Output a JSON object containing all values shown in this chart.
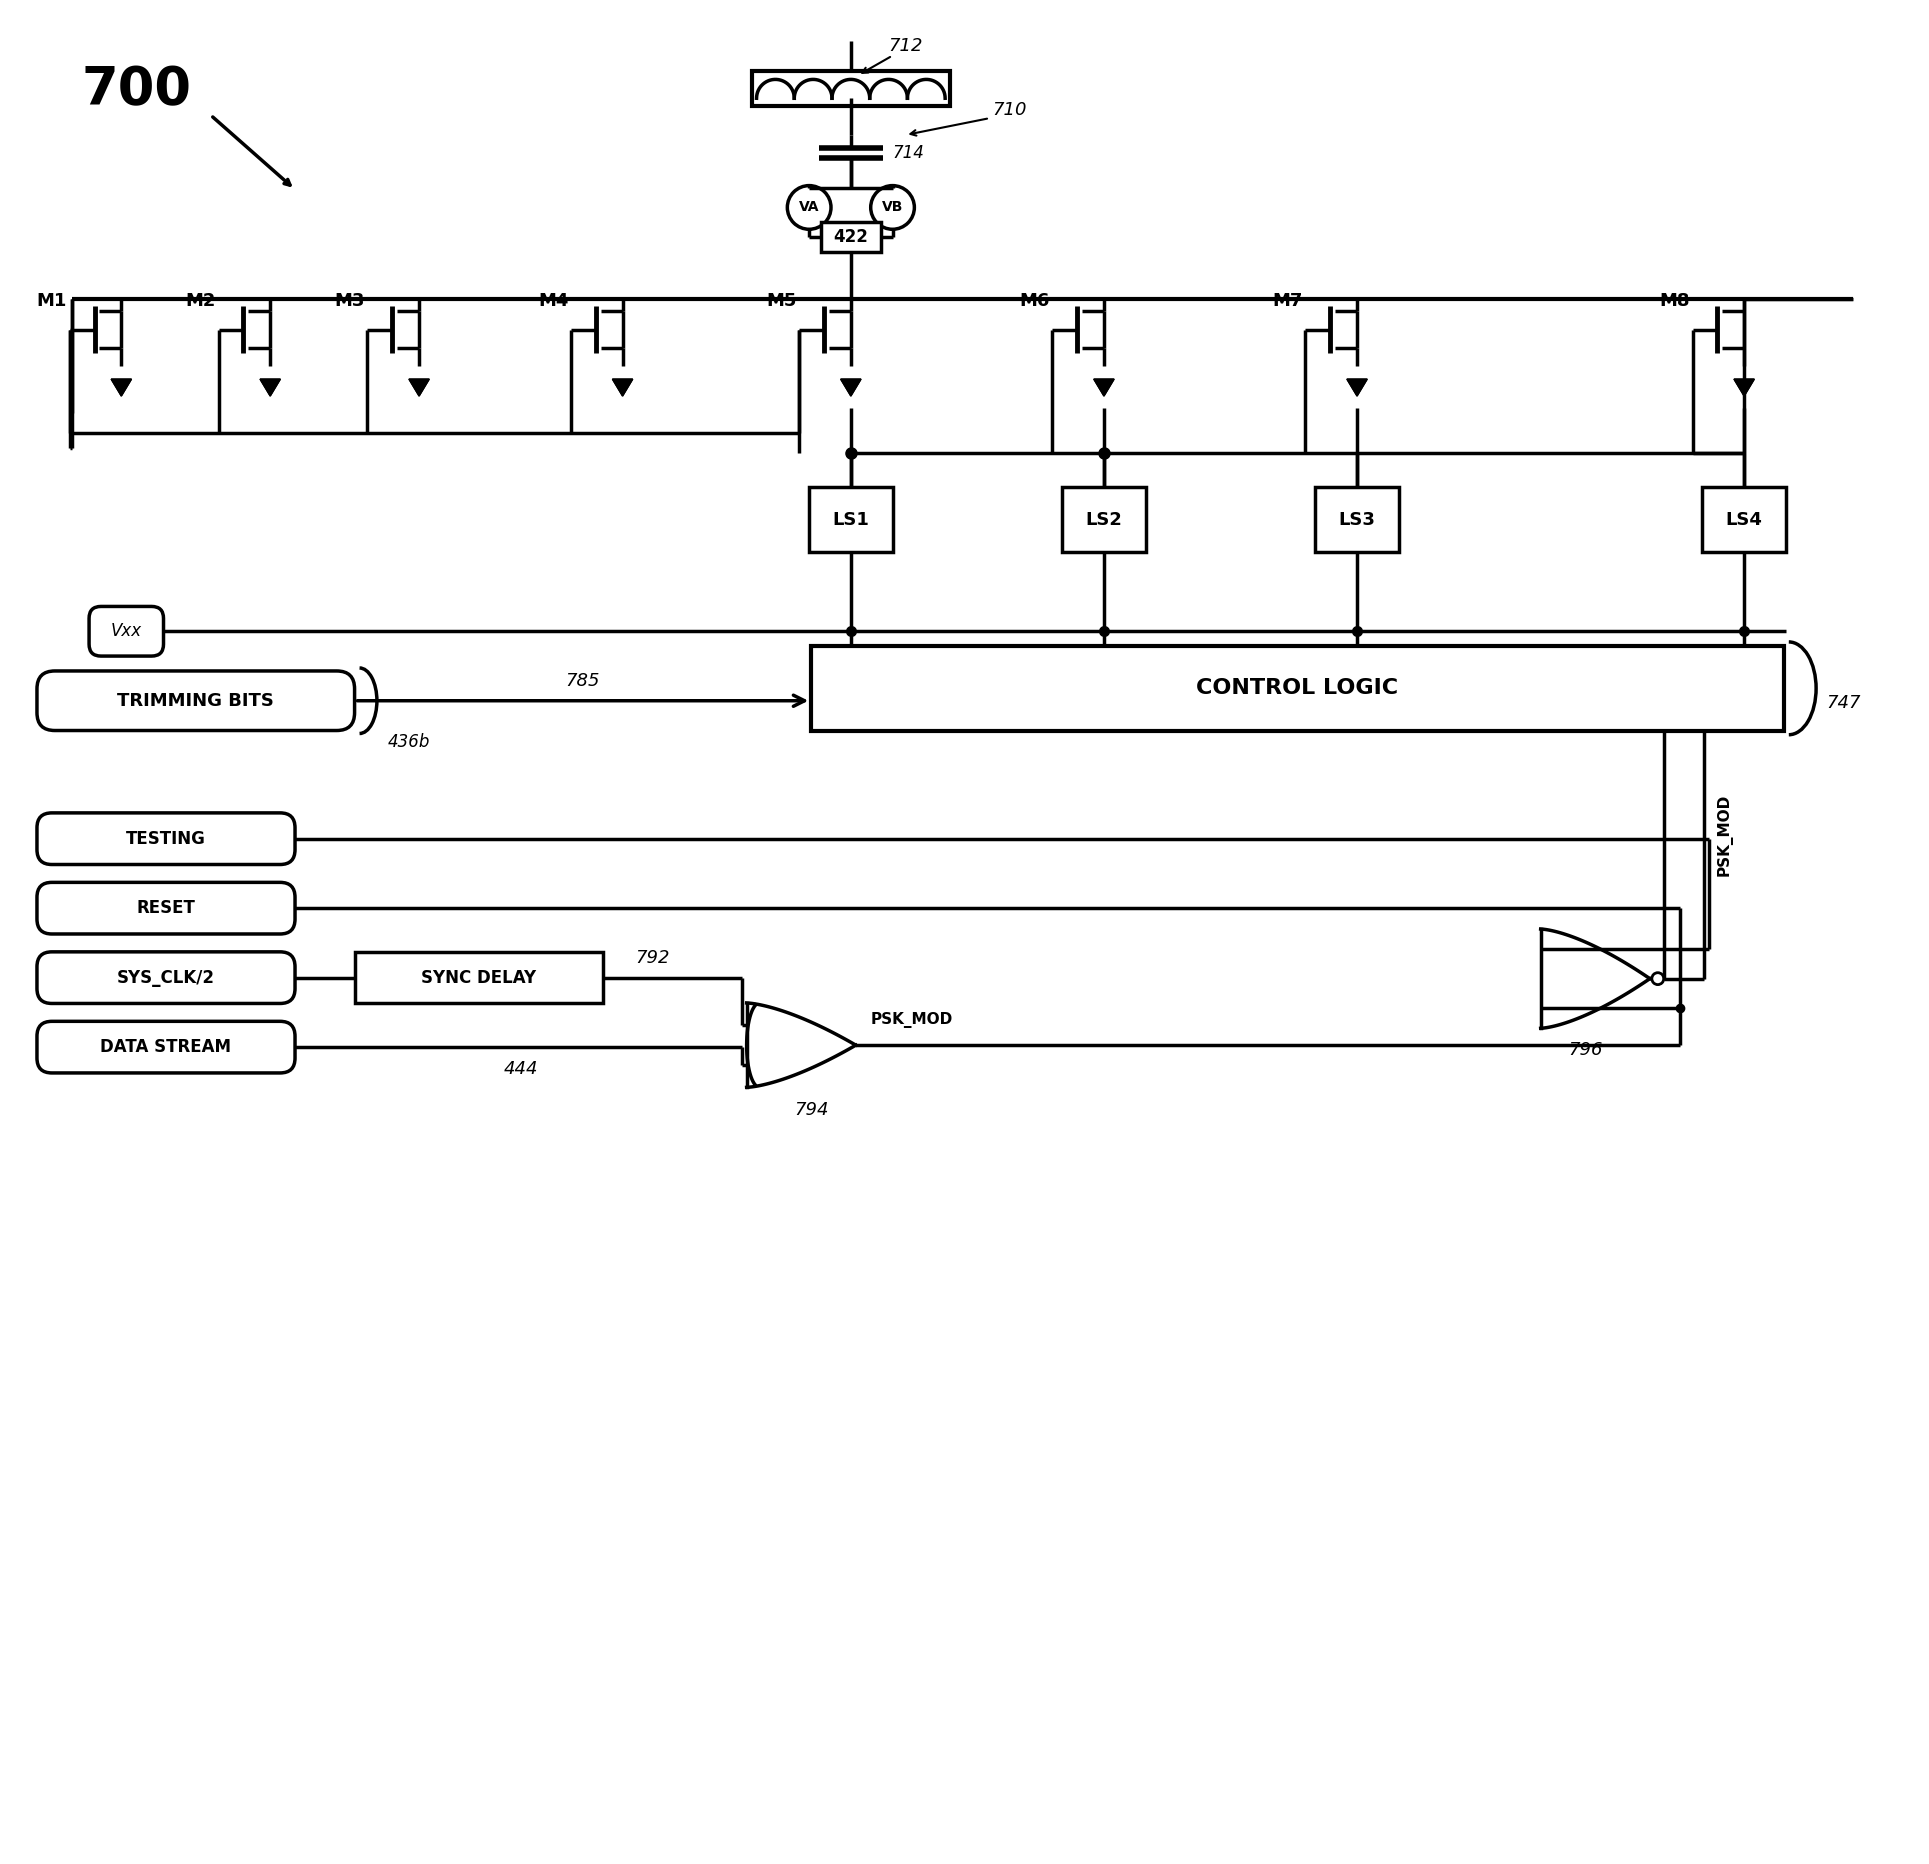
{
  "bg_color": "#ffffff",
  "line_color": "#000000",
  "lw": 2.5,
  "fig_label": "700",
  "transistors": [
    "M1",
    "M2",
    "M3",
    "M4",
    "M5",
    "M6",
    "M7",
    "M8"
  ],
  "ls_boxes": [
    "LS1",
    "LS2",
    "LS3",
    "LS4"
  ],
  "inductor_label": "712",
  "capacitor_label": "714",
  "tank_label": "710",
  "node422": "422",
  "va_label": "VA",
  "vb_label": "VB",
  "vxx_label": "Vxx",
  "trimming_label": "TRIMMING BITS",
  "trim_num": "436b",
  "arrow785": "785",
  "control_label": "CONTROL LOGIC",
  "ctrl_num": "747",
  "testing_label": "TESTING",
  "reset_label": "RESET",
  "sysclk_label": "SYS_CLK/2",
  "syncdelay_label": "SYNC DELAY",
  "datastream_label": "DATA STREAM",
  "psk_mod_label": "PSK_MOD",
  "num792": "792",
  "num794": "794",
  "num796": "796",
  "num444": "444"
}
